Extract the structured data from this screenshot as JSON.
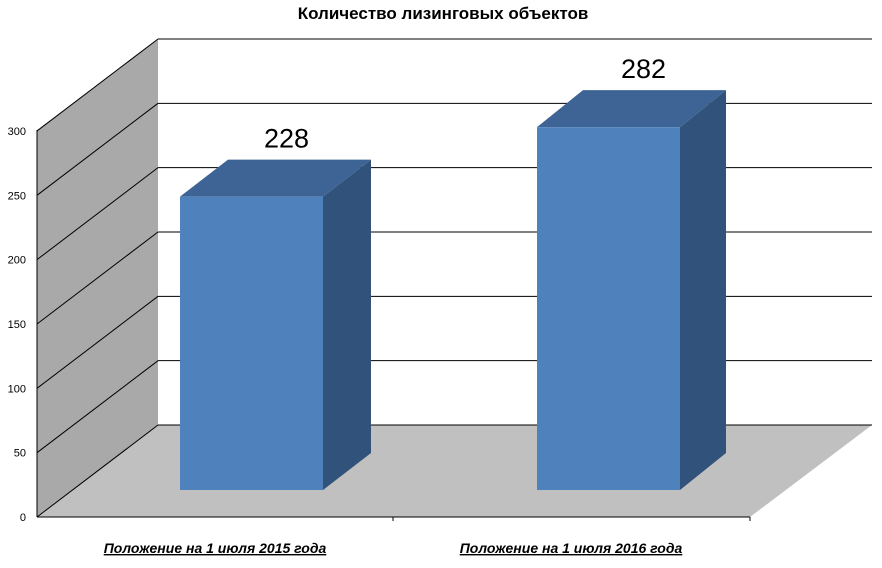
{
  "chart_data": {
    "type": "bar",
    "title": "Количество лизинговых объектов",
    "categories": [
      "Положение на 1 июля 2015 года",
      "Положение на 1 июля 2016 года"
    ],
    "values": [
      228,
      282
    ],
    "data_labels": [
      "228",
      "282"
    ],
    "ylim": [
      0,
      300
    ],
    "yticks": [
      "0",
      "50",
      "100",
      "150",
      "200",
      "250",
      "300"
    ],
    "grid": true,
    "style": "3d-column",
    "colors": {
      "bar_front": "#4f81bd",
      "bar_side": "#31527a",
      "bar_top": "#3d6494",
      "back_wall": "#ffffff",
      "side_wall": "#a9a9a9",
      "floor": "#c0c0c0",
      "gridline": "#000000"
    }
  }
}
